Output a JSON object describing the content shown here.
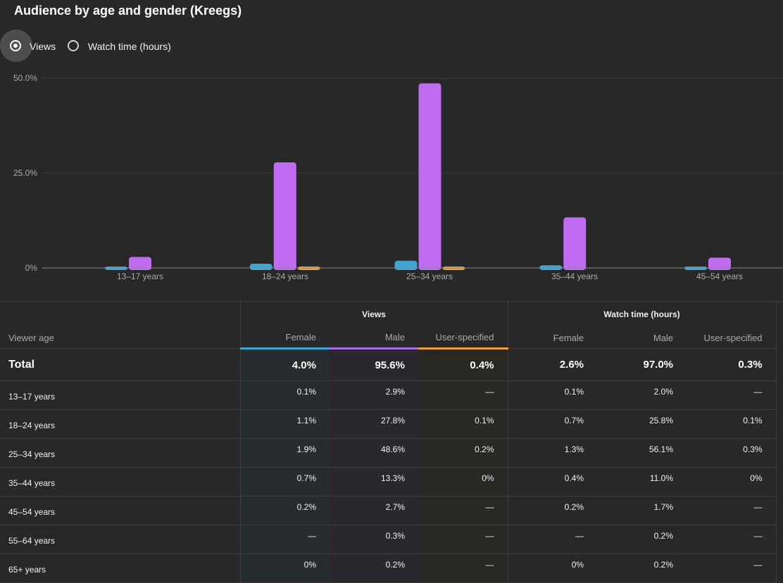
{
  "title": "Audience by age and gender (Kreegs)",
  "metric_toggle": {
    "options": [
      "Views",
      "Watch time (hours)"
    ],
    "selected": "Views"
  },
  "colors": {
    "female": "#3ea6d6",
    "male": "#bf6bf2",
    "user_specified": "#e8a33d"
  },
  "chart_data": {
    "type": "bar",
    "title": "Audience by age and gender (Kreegs)",
    "categories": [
      "13–17 years",
      "18–24 years",
      "25–34 years",
      "35–44 years",
      "45–54 years"
    ],
    "series": [
      {
        "name": "Female",
        "values": [
          0.1,
          1.1,
          1.9,
          0.7,
          0.2
        ]
      },
      {
        "name": "Male",
        "values": [
          2.9,
          27.8,
          48.6,
          13.3,
          2.7
        ]
      },
      {
        "name": "User-specified",
        "values": [
          0,
          0.1,
          0.2,
          0,
          0
        ]
      }
    ],
    "y_ticks": [
      "0%",
      "25.0%",
      "50.0%"
    ],
    "ylim": [
      0,
      50
    ],
    "grid": true,
    "xlabel": "",
    "ylabel": ""
  },
  "table": {
    "group_headers": [
      "Views",
      "Watch time (hours)"
    ],
    "column_headers": [
      "Viewer age",
      "Female",
      "Male",
      "User-specified",
      "Female",
      "Male",
      "User-specified"
    ],
    "total": {
      "label": "Total",
      "values": [
        "4.0%",
        "95.6%",
        "0.4%",
        "2.6%",
        "97.0%",
        "0.3%"
      ]
    },
    "rows": [
      {
        "age": "13–17 years",
        "values": [
          "0.1%",
          "2.9%",
          "—",
          "0.1%",
          "2.0%",
          "—"
        ]
      },
      {
        "age": "18–24 years",
        "values": [
          "1.1%",
          "27.8%",
          "0.1%",
          "0.7%",
          "25.8%",
          "0.1%"
        ]
      },
      {
        "age": "25–34 years",
        "values": [
          "1.9%",
          "48.6%",
          "0.2%",
          "1.3%",
          "56.1%",
          "0.3%"
        ]
      },
      {
        "age": "35–44 years",
        "values": [
          "0.7%",
          "13.3%",
          "0%",
          "0.4%",
          "11.0%",
          "0%"
        ]
      },
      {
        "age": "45–54 years",
        "values": [
          "0.2%",
          "2.7%",
          "—",
          "0.2%",
          "1.7%",
          "—"
        ]
      },
      {
        "age": "55–64 years",
        "values": [
          "—",
          "0.3%",
          "—",
          "—",
          "0.2%",
          "—"
        ]
      },
      {
        "age": "65+ years",
        "values": [
          "0%",
          "0.2%",
          "—",
          "0%",
          "0.2%",
          "—"
        ]
      }
    ]
  }
}
